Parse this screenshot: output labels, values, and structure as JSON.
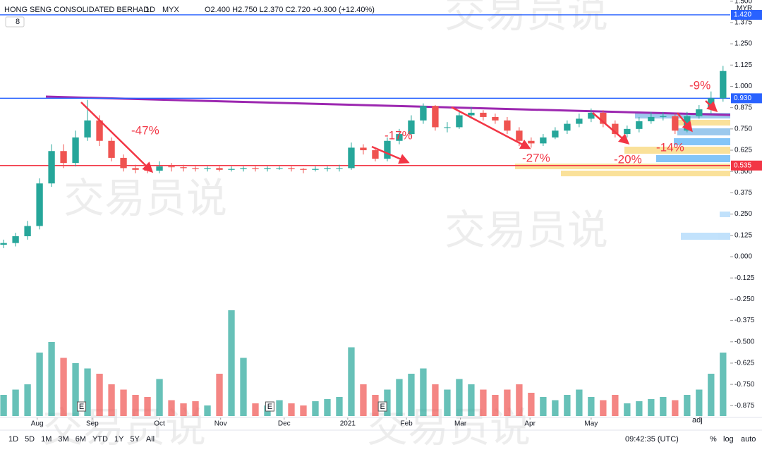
{
  "header": {
    "symbol": "HONG SENG CONSOLIDATED BERHAD",
    "interval": "1D",
    "exchange": "MYX",
    "ohlc": "O2.400 H2.750 L2.370 C2.720 +0.300 (+12.40%)",
    "indicator_count": "8",
    "currency": "MYR"
  },
  "chart_data": {
    "type": "candlestick",
    "xlim": [
      -0.3,
      60.6
    ],
    "xticks": [
      {
        "value": 2.8,
        "label": "Aug"
      },
      {
        "value": 7.4,
        "label": "Sep"
      },
      {
        "value": 13,
        "label": "Oct"
      },
      {
        "value": 18.1,
        "label": "Nov"
      },
      {
        "value": 23.4,
        "label": "Dec"
      },
      {
        "value": 28.7,
        "label": "2021"
      },
      {
        "value": 33.6,
        "label": "Feb"
      },
      {
        "value": 38.1,
        "label": "Mar"
      },
      {
        "value": 43.9,
        "label": "Apr"
      },
      {
        "value": 49,
        "label": "May"
      }
    ],
    "ylim": [
      -0.944,
      1.507
    ],
    "yticks": [
      {
        "value": 1.5,
        "label": "1.500"
      },
      {
        "value": 1.375,
        "label": "1.375"
      },
      {
        "value": 1.25,
        "label": "1.250"
      },
      {
        "value": 1.125,
        "label": "1.125"
      },
      {
        "value": 1,
        "label": "1.000"
      },
      {
        "value": 0.875,
        "label": "0.875"
      },
      {
        "value": 0.75,
        "label": "0.750"
      },
      {
        "value": 0.625,
        "label": "0.625"
      },
      {
        "value": 0.5,
        "label": "0.500"
      },
      {
        "value": 0.375,
        "label": "0.375"
      },
      {
        "value": 0.25,
        "label": "0.250"
      },
      {
        "value": 0.125,
        "label": "0.125"
      },
      {
        "value": 0,
        "label": "0.000"
      },
      {
        "value": -0.125,
        "label": "-0.125"
      },
      {
        "value": -0.25,
        "label": "-0.250"
      },
      {
        "value": -0.375,
        "label": "-0.375"
      },
      {
        "value": -0.5,
        "label": "-0.500"
      },
      {
        "value": -0.625,
        "label": "-0.625"
      },
      {
        "value": -0.75,
        "label": "-0.750"
      },
      {
        "value": -0.875,
        "label": "-0.875"
      }
    ],
    "up_color": "#26a69a",
    "down_color": "#ef5350",
    "open": [
      0.07,
      0.08,
      0.12,
      0.18,
      0.43,
      0.62,
      0.55,
      0.7,
      0.8,
      0.68,
      0.58,
      0.52,
      0.51,
      0.505,
      0.53,
      0.525,
      0.52,
      0.515,
      0.52,
      0.51,
      0.515,
      0.52,
      0.515,
      0.52,
      0.52,
      0.515,
      0.51,
      0.515,
      0.52,
      0.52,
      0.64,
      0.625,
      0.575,
      0.68,
      0.72,
      0.8,
      0.885,
      0.76,
      0.76,
      0.83,
      0.845,
      0.82,
      0.8,
      0.74,
      0.68,
      0.665,
      0.7,
      0.74,
      0.78,
      0.81,
      0.845,
      0.78,
      0.72,
      0.75,
      0.795,
      0.82,
      0.825,
      0.74,
      0.825,
      0.865,
      0.93
    ],
    "high": [
      0.1,
      0.14,
      0.21,
      0.46,
      0.66,
      0.66,
      0.74,
      0.92,
      0.83,
      0.7,
      0.6,
      0.54,
      0.53,
      0.56,
      0.55,
      0.54,
      0.53,
      0.53,
      0.53,
      0.53,
      0.53,
      0.53,
      0.53,
      0.53,
      0.53,
      0.52,
      0.53,
      0.53,
      0.54,
      0.67,
      0.66,
      0.64,
      0.7,
      0.75,
      0.83,
      0.9,
      0.89,
      0.79,
      0.86,
      0.88,
      0.86,
      0.84,
      0.82,
      0.76,
      0.7,
      0.72,
      0.76,
      0.8,
      0.84,
      0.87,
      0.86,
      0.8,
      0.77,
      0.82,
      0.85,
      0.85,
      0.84,
      0.85,
      0.89,
      0.97,
      1.12
    ],
    "low": [
      0.05,
      0.06,
      0.1,
      0.16,
      0.41,
      0.52,
      0.53,
      0.68,
      0.65,
      0.56,
      0.5,
      0.49,
      0.49,
      0.49,
      0.5,
      0.5,
      0.5,
      0.5,
      0.5,
      0.5,
      0.5,
      0.5,
      0.5,
      0.51,
      0.5,
      0.49,
      0.5,
      0.5,
      0.5,
      0.51,
      0.6,
      0.56,
      0.56,
      0.66,
      0.7,
      0.78,
      0.74,
      0.73,
      0.75,
      0.81,
      0.8,
      0.78,
      0.72,
      0.65,
      0.64,
      0.65,
      0.69,
      0.72,
      0.76,
      0.79,
      0.76,
      0.7,
      0.7,
      0.73,
      0.78,
      0.8,
      0.72,
      0.73,
      0.81,
      0.84,
      0.91
    ],
    "close": [
      0.08,
      0.12,
      0.18,
      0.43,
      0.62,
      0.55,
      0.7,
      0.8,
      0.68,
      0.58,
      0.52,
      0.51,
      0.505,
      0.53,
      0.525,
      0.52,
      0.515,
      0.52,
      0.51,
      0.515,
      0.52,
      0.515,
      0.52,
      0.52,
      0.515,
      0.51,
      0.515,
      0.52,
      0.52,
      0.64,
      0.625,
      0.575,
      0.68,
      0.72,
      0.8,
      0.885,
      0.76,
      0.76,
      0.83,
      0.845,
      0.82,
      0.8,
      0.74,
      0.68,
      0.665,
      0.7,
      0.74,
      0.78,
      0.81,
      0.845,
      0.78,
      0.72,
      0.75,
      0.795,
      0.82,
      0.825,
      0.74,
      0.825,
      0.865,
      0.93,
      1.09
    ],
    "volume": [
      20,
      25,
      30,
      60,
      70,
      55,
      50,
      45,
      40,
      30,
      25,
      20,
      18,
      35,
      15,
      12,
      14,
      10,
      40,
      100,
      55,
      12,
      10,
      15,
      12,
      10,
      14,
      16,
      18,
      65,
      30,
      20,
      25,
      35,
      40,
      45,
      30,
      25,
      35,
      30,
      25,
      20,
      25,
      30,
      22,
      18,
      15,
      20,
      25,
      18,
      15,
      20,
      12,
      14,
      16,
      18,
      15,
      20,
      25,
      40,
      60
    ],
    "levels": [
      {
        "value": 1.42,
        "label": "1.420",
        "color": "#2962ff"
      },
      {
        "value": 0.93,
        "label": "0.930",
        "color": "#2962ff"
      },
      {
        "value": 0.535,
        "label": "0.535",
        "color": "#f23645"
      }
    ],
    "annotations": [
      "-47%",
      "-17%",
      "-27%",
      "-20%",
      "-14%",
      "-9%"
    ],
    "earnings_marker": "E"
  },
  "toolbar": {
    "ranges": [
      "1D",
      "5D",
      "1M",
      "3M",
      "6M",
      "YTD",
      "1Y",
      "5Y",
      "All"
    ],
    "time": "09:42:35 (UTC)",
    "options": [
      "%",
      "log",
      "auto"
    ],
    "adj": "adj"
  },
  "watermark": "交易员说"
}
